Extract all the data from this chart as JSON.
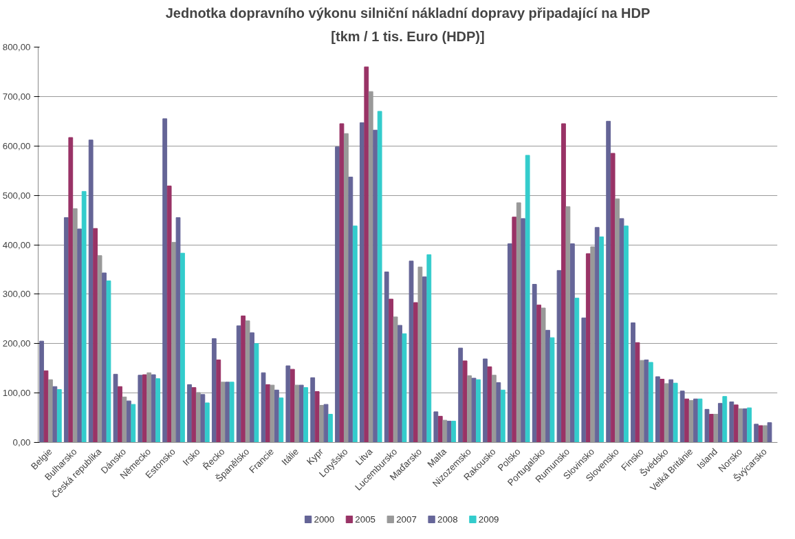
{
  "chart_data": {
    "type": "bar",
    "title": "Jednotka dopravního výkonu silniční nákladní dopravy připadající na HDP",
    "subtitle": "[tkm / 1 tis. Euro (HDP)]",
    "categories": [
      "Belgie",
      "Bulharsko",
      "Česká republika",
      "Dánsko",
      "Německo",
      "Estonsko",
      "Irsko",
      "Řecko",
      "Španělsko",
      "Francie",
      "Itálie",
      "Kypr",
      "Lotyšsko",
      "Litva",
      "Lucembursko",
      "Maďarsko",
      "Malta",
      "Nizozemsko",
      "Rakousko",
      "Polsko",
      "Portugalsko",
      "Rumunsko",
      "Slovinsko",
      "Slovensko",
      "Finsko",
      "Švédsko",
      "Velká Británie",
      "Island",
      "Norsko",
      "Švýcarsko"
    ],
    "series": [
      {
        "name": "2000",
        "color": "#646496",
        "values": [
          205,
          455,
          612,
          138,
          136,
          655,
          117,
          210,
          236,
          141,
          155,
          131,
          598,
          647,
          345,
          367,
          62,
          191,
          169,
          402,
          320,
          348,
          252,
          650,
          242,
          133,
          104,
          67,
          82,
          37
        ]
      },
      {
        "name": "2005",
        "color": "#993366",
        "values": [
          145,
          617,
          433,
          113,
          137,
          519,
          111,
          167,
          256,
          117,
          148,
          103,
          645,
          760,
          290,
          283,
          53,
          165,
          153,
          456,
          278,
          645,
          382,
          585,
          202,
          128,
          88,
          57,
          76,
          34
        ]
      },
      {
        "name": "2007",
        "color": "#999999",
        "values": [
          127,
          473,
          378,
          92,
          141,
          405,
          101,
          122,
          246,
          116,
          116,
          75,
          625,
          710,
          254,
          355,
          45,
          135,
          136,
          485,
          272,
          477,
          396,
          493,
          166,
          119,
          85,
          57,
          68,
          34
        ]
      },
      {
        "name": "2008",
        "color": "#666699",
        "values": [
          113,
          432,
          343,
          84,
          137,
          455,
          97,
          122,
          222,
          106,
          116,
          77,
          537,
          632,
          237,
          335,
          43,
          130,
          121,
          453,
          227,
          402,
          435,
          453,
          167,
          127,
          88,
          79,
          68,
          40
        ]
      },
      {
        "name": "2009",
        "color": "#33cccc",
        "values": [
          107,
          508,
          327,
          77,
          129,
          383,
          80,
          122,
          200,
          90,
          111,
          57,
          438,
          670,
          220,
          380,
          43,
          127,
          106,
          581,
          212,
          292,
          416,
          438,
          162,
          120,
          88,
          93,
          70,
          null
        ]
      }
    ],
    "ylim": [
      0,
      800
    ],
    "yticks": [
      {
        "value": 0,
        "label": "0,00"
      },
      {
        "value": 100,
        "label": "100,00"
      },
      {
        "value": 200,
        "label": "200,00"
      },
      {
        "value": 300,
        "label": "300,00"
      },
      {
        "value": 400,
        "label": "400,00"
      },
      {
        "value": 500,
        "label": "500,00"
      },
      {
        "value": 600,
        "label": "600,00"
      },
      {
        "value": 700,
        "label": "700,00"
      },
      {
        "value": 800,
        "label": "800,00"
      }
    ],
    "grid": "y",
    "legend": "bottom"
  }
}
